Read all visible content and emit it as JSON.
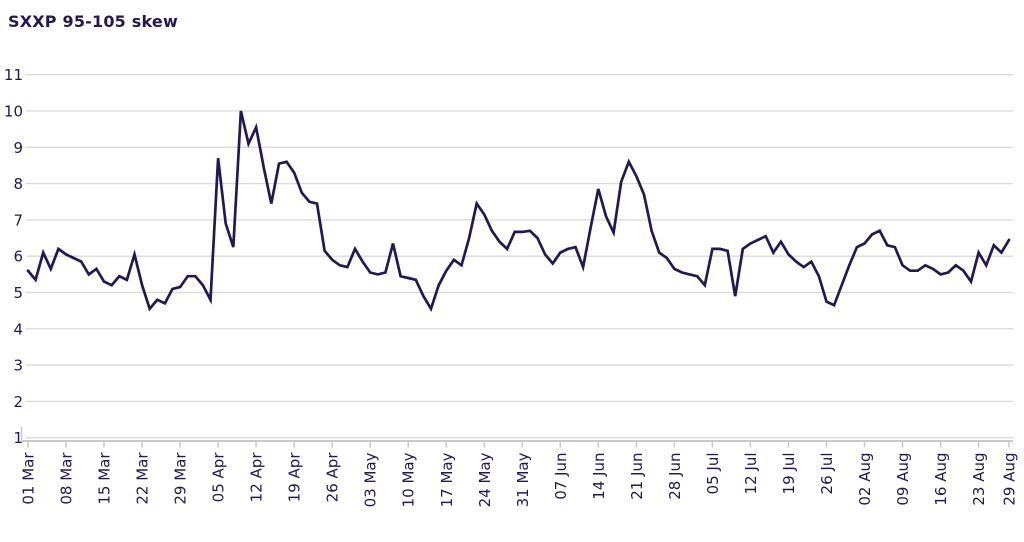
{
  "page": {
    "title": "SXXP 95-105 skew"
  },
  "chart_data": {
    "type": "line",
    "title": "SXXP 95-105 skew",
    "xlabel": "",
    "ylabel": "",
    "ylim": [
      1,
      11
    ],
    "y_ticks": [
      1,
      2,
      3,
      4,
      5,
      6,
      7,
      8,
      9,
      10,
      11
    ],
    "grid": "horizontal-light",
    "legend": "none",
    "x_tick_labels": [
      "01 Mar",
      "08 Mar",
      "15 Mar",
      "22 Mar",
      "29 Mar",
      "05 Apr",
      "12 Apr",
      "19 Apr",
      "26 Apr",
      "03 May",
      "10 May",
      "17 May",
      "24 May",
      "31 May",
      "07 Jun",
      "14 Jun",
      "21 Jun",
      "28 Jun",
      "05 Jul",
      "12 Jul",
      "19 Jul",
      "26 Jul",
      "02 Aug",
      "09 Aug",
      "16 Aug",
      "23 Aug",
      "29 Aug"
    ],
    "x_tick_indices": [
      0,
      5,
      10,
      15,
      20,
      25,
      30,
      35,
      40,
      45,
      50,
      55,
      60,
      65,
      70,
      75,
      80,
      85,
      90,
      95,
      100,
      105,
      110,
      115,
      120,
      125,
      129
    ],
    "series": [
      {
        "name": "SXXP 95-105 skew",
        "values": [
          5.6,
          5.35,
          6.1,
          5.65,
          6.2,
          6.05,
          5.95,
          5.85,
          5.5,
          5.65,
          5.3,
          5.2,
          5.45,
          5.35,
          6.05,
          5.2,
          4.55,
          4.8,
          4.7,
          5.1,
          5.15,
          5.45,
          5.45,
          5.2,
          4.8,
          8.7,
          6.9,
          6.25,
          10.0,
          9.1,
          9.55,
          8.45,
          7.45,
          8.55,
          8.6,
          8.3,
          7.75,
          7.5,
          7.45,
          6.15,
          5.9,
          5.75,
          5.7,
          6.2,
          5.85,
          5.55,
          5.5,
          5.55,
          6.35,
          5.45,
          5.4,
          5.35,
          4.9,
          4.55,
          5.2,
          5.6,
          5.9,
          5.75,
          6.5,
          7.45,
          7.15,
          6.7,
          6.4,
          6.2,
          6.67,
          6.67,
          6.7,
          6.5,
          6.05,
          5.8,
          6.1,
          6.2,
          6.25,
          5.7,
          6.8,
          7.85,
          7.1,
          6.65,
          8.05,
          8.6,
          8.2,
          7.7,
          6.7,
          6.1,
          5.95,
          5.65,
          5.55,
          5.5,
          5.45,
          5.2,
          6.2,
          6.2,
          6.15,
          4.9,
          6.2,
          6.35,
          6.45,
          6.55,
          6.1,
          6.4,
          6.05,
          5.85,
          5.7,
          5.85,
          5.45,
          4.75,
          4.65,
          5.2,
          5.75,
          6.25,
          6.35,
          6.6,
          6.7,
          6.3,
          6.25,
          5.75,
          5.6,
          5.6,
          5.75,
          5.65,
          5.5,
          5.55,
          5.75,
          5.6,
          5.3,
          6.1,
          5.75,
          6.3,
          6.1,
          6.45
        ]
      }
    ],
    "colors": {
      "line": "#211953",
      "text": "#211953",
      "grid": "#d9d9d9",
      "axis": "#c9c9c9",
      "background": "#ffffff"
    }
  }
}
